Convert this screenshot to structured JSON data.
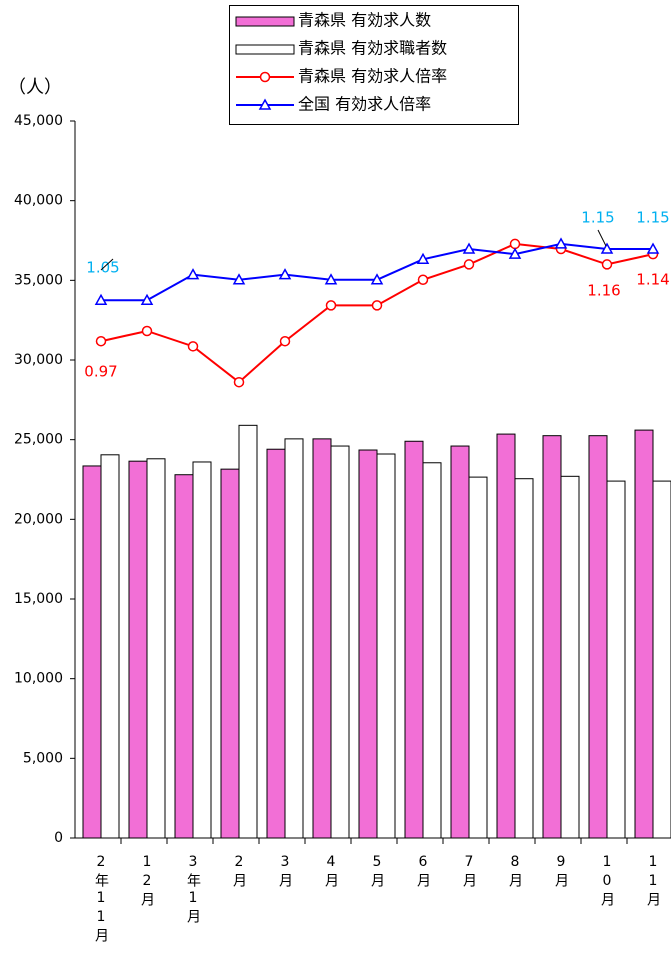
{
  "chart_data": {
    "type": "bar-line",
    "y_label": "（人）",
    "y2_label": "（",
    "categories": [
      "2年11月",
      "12月",
      "3年1月",
      "2月",
      "3月",
      "4月",
      "5月",
      "6月",
      "7月",
      "8月",
      "9月",
      "10月",
      "11月"
    ],
    "series": [
      {
        "name": "青森県 有効求人数",
        "type": "bar",
        "color": "#f26fd6",
        "values": [
          23350,
          23650,
          22800,
          23150,
          24400,
          25050,
          24350,
          24900,
          24600,
          25350,
          25250,
          25250,
          25600
        ]
      },
      {
        "name": "青森県 有効求職者数",
        "type": "bar",
        "color": "#ffffff",
        "values": [
          24050,
          23800,
          23600,
          25900,
          25050,
          24600,
          24100,
          23550,
          22650,
          22550,
          22700,
          22400,
          22400
        ]
      },
      {
        "name": "青森県 有効求人倍率",
        "type": "line",
        "axis": "y2",
        "color": "#ff0000",
        "label_color": "#ff0000",
        "values": [
          0.97,
          0.99,
          0.96,
          0.89,
          0.97,
          1.04,
          1.04,
          1.09,
          1.12,
          1.16,
          1.15,
          1.12,
          1.14
        ]
      },
      {
        "name": "全国 有効求人倍率",
        "type": "line",
        "axis": "y2",
        "color": "#0000ff",
        "label_color": "#00b0f0",
        "values": [
          1.05,
          1.05,
          1.1,
          1.09,
          1.1,
          1.09,
          1.09,
          1.13,
          1.15,
          1.14,
          1.16,
          1.15,
          1.15
        ]
      }
    ],
    "ylim": [
      0,
      45000
    ],
    "yticks": [
      {
        "value": 0,
        "label": "0"
      },
      {
        "value": 5000,
        "label": "5,000"
      },
      {
        "value": 10000,
        "label": "10,000"
      },
      {
        "value": 15000,
        "label": "15,000"
      },
      {
        "value": 20000,
        "label": "20,000"
      },
      {
        "value": 25000,
        "label": "25,000"
      },
      {
        "value": 30000,
        "label": "30,000"
      },
      {
        "value": 35000,
        "label": "35,000"
      },
      {
        "value": 40000,
        "label": "40,000"
      },
      {
        "value": 45000,
        "label": "45,000"
      }
    ],
    "y2lim": [
      0,
      1.4
    ],
    "grid": false,
    "legend": "top"
  }
}
